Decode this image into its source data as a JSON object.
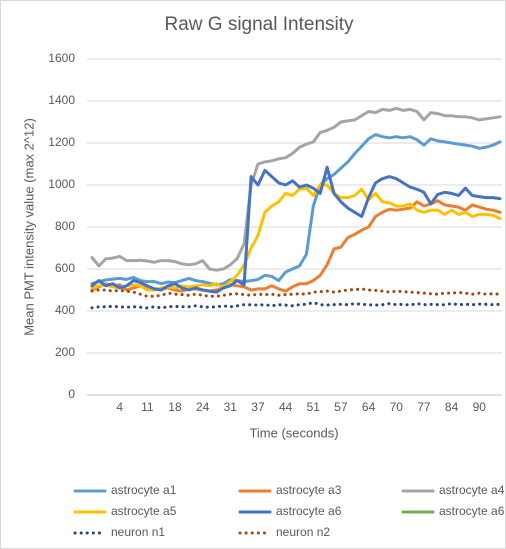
{
  "chart_data": {
    "type": "line",
    "title": "Raw G signal Intensity",
    "x_label": "Time (seconds)",
    "y_label": "Mean PMT intensity value (max 2^12)",
    "categories": [
      null,
      null,
      null,
      null,
      "4",
      null,
      null,
      null,
      "11",
      null,
      null,
      null,
      "18",
      null,
      null,
      null,
      "24",
      null,
      null,
      null,
      "31",
      null,
      null,
      null,
      "37",
      null,
      null,
      null,
      "44",
      null,
      null,
      null,
      "51",
      null,
      null,
      null,
      "57",
      null,
      null,
      null,
      "64",
      null,
      null,
      null,
      "70",
      null,
      null,
      null,
      "77",
      null,
      null,
      null,
      "84",
      null,
      null,
      null,
      "90",
      null,
      null,
      null
    ],
    "ylim": [
      0,
      1600
    ],
    "yticks": [
      0,
      200,
      400,
      600,
      800,
      1000,
      1200,
      1400,
      1600
    ],
    "grid": true,
    "legend": "bottom",
    "series": [
      {
        "name": "astrocyte a1",
        "color": "#5b9bd5",
        "style": "solid",
        "values": [
          530,
          540,
          548,
          552,
          555,
          550,
          560,
          545,
          540,
          540,
          530,
          538,
          535,
          545,
          555,
          545,
          540,
          532,
          525,
          530,
          550,
          545,
          540,
          545,
          550,
          570,
          565,
          545,
          585,
          600,
          615,
          670,
          900,
          1000,
          1030,
          1050,
          1080,
          1110,
          1150,
          1185,
          1220,
          1240,
          1230,
          1225,
          1230,
          1225,
          1230,
          1215,
          1190,
          1220,
          1210,
          1205,
          1200,
          1195,
          1190,
          1185,
          1175,
          1180,
          1190,
          1205
        ]
      },
      {
        "name": "astrocyte a3",
        "color": "#ed7d31",
        "style": "solid",
        "values": [
          500,
          515,
          530,
          520,
          525,
          500,
          510,
          520,
          510,
          505,
          505,
          510,
          500,
          495,
          505,
          505,
          500,
          495,
          500,
          510,
          525,
          520,
          515,
          500,
          505,
          505,
          520,
          505,
          495,
          515,
          530,
          530,
          545,
          570,
          620,
          695,
          705,
          750,
          765,
          785,
          800,
          850,
          870,
          885,
          880,
          885,
          890,
          920,
          900,
          910,
          925,
          905,
          900,
          895,
          880,
          905,
          895,
          885,
          880,
          870
        ]
      },
      {
        "name": "astrocyte a4",
        "color": "#a5a5a5",
        "style": "solid",
        "values": [
          655,
          615,
          648,
          652,
          660,
          640,
          640,
          642,
          638,
          632,
          640,
          640,
          635,
          625,
          620,
          625,
          640,
          600,
          595,
          600,
          620,
          650,
          720,
          1000,
          1100,
          1110,
          1115,
          1125,
          1130,
          1150,
          1180,
          1195,
          1205,
          1250,
          1260,
          1275,
          1300,
          1305,
          1310,
          1330,
          1350,
          1345,
          1360,
          1355,
          1365,
          1355,
          1360,
          1350,
          1310,
          1345,
          1340,
          1330,
          1330,
          1325,
          1325,
          1320,
          1310,
          1315,
          1320,
          1325
        ]
      },
      {
        "name": "astrocyte a5",
        "color": "#ffc000",
        "style": "solid",
        "values": [
          510,
          520,
          525,
          515,
          510,
          520,
          525,
          520,
          500,
          500,
          510,
          515,
          510,
          520,
          515,
          520,
          525,
          520,
          530,
          510,
          540,
          570,
          620,
          700,
          760,
          870,
          900,
          920,
          960,
          950,
          980,
          985,
          950,
          1000,
          1000,
          960,
          940,
          940,
          950,
          980,
          930,
          960,
          920,
          915,
          900,
          900,
          910,
          880,
          870,
          880,
          880,
          860,
          880,
          860,
          870,
          850,
          860,
          860,
          855,
          840
        ]
      },
      {
        "name": "astrocyte a6",
        "color": "#4472c4",
        "style": "solid",
        "values": [
          520,
          545,
          520,
          530,
          510,
          520,
          545,
          535,
          520,
          505,
          500,
          520,
          530,
          510,
          500,
          510,
          500,
          495,
          490,
          510,
          520,
          545,
          525,
          1040,
          1000,
          1070,
          1040,
          1010,
          1000,
          1020,
          990,
          1000,
          985,
          960,
          1085,
          960,
          920,
          890,
          870,
          850,
          940,
          1010,
          1030,
          1040,
          1030,
          1010,
          990,
          980,
          965,
          910,
          955,
          965,
          960,
          950,
          985,
          950,
          945,
          940,
          940,
          935
        ]
      },
      {
        "name": "astrocyte a6",
        "color": "#70ad47",
        "style": "solid",
        "values": [
          null,
          null,
          null,
          null,
          null,
          null,
          null,
          null,
          null,
          null,
          null,
          null,
          null,
          null,
          null,
          null,
          null,
          null,
          null,
          null,
          null,
          null,
          null,
          null,
          null,
          null,
          null,
          null,
          null,
          null,
          null,
          null,
          null,
          null,
          null,
          null,
          null,
          null,
          null,
          null,
          null,
          null,
          null,
          null,
          null,
          null,
          null,
          null,
          null,
          null,
          null,
          null,
          null,
          null,
          null,
          null,
          null,
          null,
          null,
          null
        ]
      },
      {
        "name": "neuron n1",
        "color": "#264478",
        "style": "dotted",
        "values": [
          415,
          420,
          420,
          422,
          420,
          418,
          420,
          418,
          415,
          420,
          415,
          420,
          422,
          420,
          420,
          425,
          420,
          418,
          420,
          425,
          420,
          425,
          430,
          430,
          428,
          430,
          425,
          430,
          428,
          425,
          430,
          432,
          440,
          430,
          428,
          430,
          432,
          430,
          435,
          432,
          430,
          428,
          430,
          435,
          430,
          432,
          428,
          435,
          430,
          432,
          430,
          430,
          435,
          430,
          432,
          430,
          433,
          432,
          430,
          432
        ]
      },
      {
        "name": "neuron n2",
        "color": "#9e480e",
        "style": "dotted",
        "values": [
          495,
          500,
          500,
          495,
          498,
          495,
          490,
          480,
          470,
          470,
          475,
          485,
          480,
          478,
          475,
          480,
          475,
          470,
          470,
          475,
          480,
          482,
          478,
          475,
          480,
          478,
          480,
          475,
          478,
          480,
          482,
          480,
          490,
          492,
          495,
          490,
          495,
          500,
          502,
          505,
          500,
          498,
          495,
          490,
          495,
          492,
          490,
          488,
          485,
          482,
          480,
          485,
          485,
          488,
          485,
          480,
          485,
          480,
          482,
          480
        ]
      }
    ]
  }
}
